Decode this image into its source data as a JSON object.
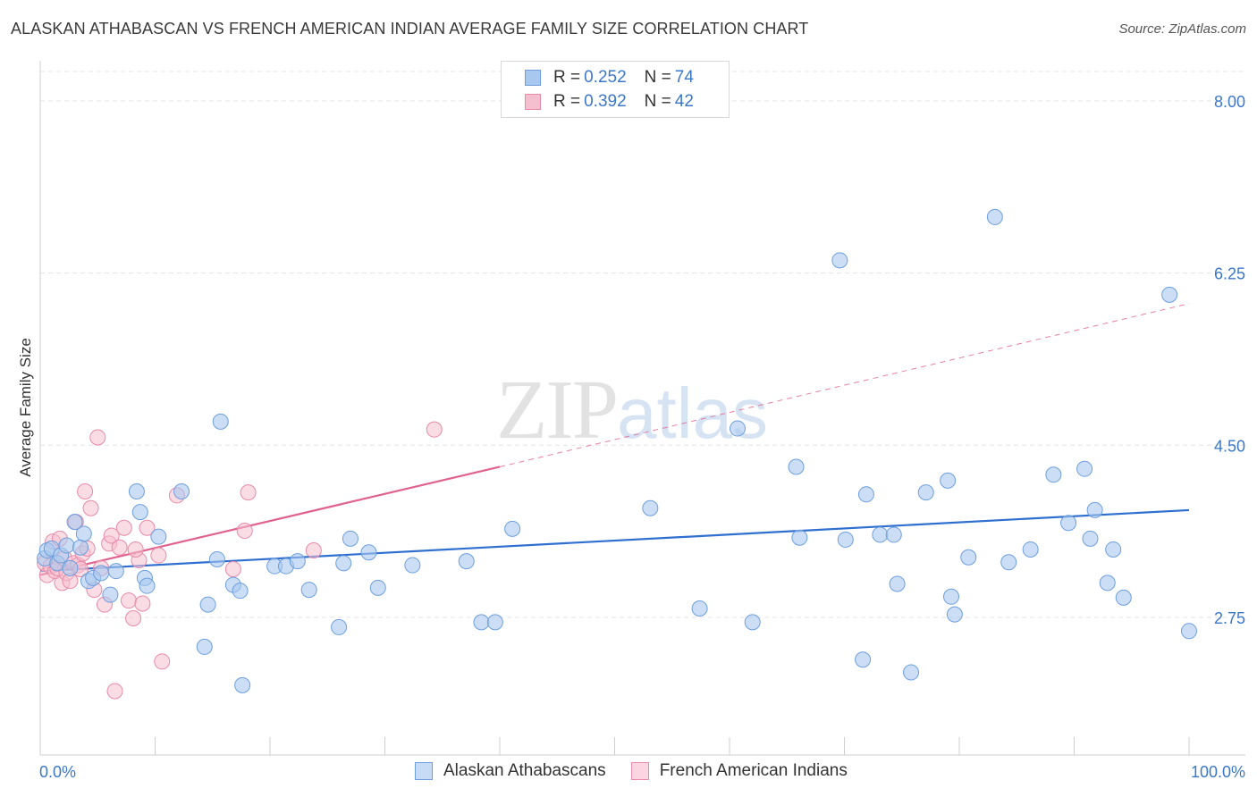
{
  "header": {
    "title": "ALASKAN ATHABASCAN VS FRENCH AMERICAN INDIAN AVERAGE FAMILY SIZE CORRELATION CHART",
    "source": "Source: ZipAtlas.com"
  },
  "legend": {
    "series1": {
      "r_label": "R = ",
      "r_value": "0.252",
      "n_label": "N = ",
      "n_value": "74"
    },
    "series2": {
      "r_label": "R = ",
      "r_value": "0.392",
      "n_label": "N = ",
      "n_value": "42"
    }
  },
  "watermark": {
    "zip": "ZIP",
    "atlas": "atlas"
  },
  "colors": {
    "blue_fill": "#a9c8ef",
    "blue_stroke": "#6e9fdc",
    "blue_line": "#2f6fcf",
    "pink_fill": "#f6bfd0",
    "pink_stroke": "#e88aa8",
    "pink_line": "#e0628f",
    "tick_text": "#3b78c8",
    "grid": "#e4e4e4"
  },
  "chart_data": {
    "type": "scatter",
    "title": "ALASKAN ATHABASCAN VS FRENCH AMERICAN INDIAN AVERAGE FAMILY SIZE CORRELATION CHART",
    "xlabel": "",
    "ylabel": "Average Family Size",
    "xlim": [
      0,
      100
    ],
    "ylim": [
      1.35,
      8.3
    ],
    "x_tick_labels": [
      "0.0%",
      "100.0%"
    ],
    "y_ticks": [
      2.75,
      4.5,
      6.25,
      8.0
    ],
    "y_tick_labels": [
      "2.75",
      "4.50",
      "6.25",
      "8.00"
    ],
    "legend_position": "bottom",
    "series": [
      {
        "name": "Alaskan Athabascans",
        "color": "#a9c8ef",
        "r": 0.252,
        "n": 74,
        "trend": {
          "x0": 0,
          "y0": 3.22,
          "x1": 100,
          "y1": 3.84,
          "dashed_to": 100
        },
        "points": [
          [
            0.4,
            3.35
          ],
          [
            0.6,
            3.43
          ],
          [
            1.0,
            3.45
          ],
          [
            1.5,
            3.3
          ],
          [
            1.8,
            3.38
          ],
          [
            2.3,
            3.48
          ],
          [
            2.6,
            3.25
          ],
          [
            3.0,
            3.72
          ],
          [
            3.5,
            3.46
          ],
          [
            3.8,
            3.6
          ],
          [
            4.2,
            3.12
          ],
          [
            4.6,
            3.15
          ],
          [
            5.3,
            3.2
          ],
          [
            6.1,
            2.98
          ],
          [
            6.6,
            3.22
          ],
          [
            8.4,
            4.03
          ],
          [
            8.7,
            3.82
          ],
          [
            9.1,
            3.15
          ],
          [
            9.3,
            3.07
          ],
          [
            10.3,
            3.57
          ],
          [
            12.3,
            4.03
          ],
          [
            14.3,
            2.45
          ],
          [
            14.6,
            2.88
          ],
          [
            15.4,
            3.34
          ],
          [
            15.7,
            4.74
          ],
          [
            16.8,
            3.08
          ],
          [
            17.4,
            3.02
          ],
          [
            17.6,
            2.06
          ],
          [
            20.4,
            3.27
          ],
          [
            21.4,
            3.27
          ],
          [
            22.4,
            3.32
          ],
          [
            23.4,
            3.03
          ],
          [
            26.0,
            2.65
          ],
          [
            26.4,
            3.3
          ],
          [
            27.0,
            3.55
          ],
          [
            28.6,
            3.41
          ],
          [
            29.4,
            3.05
          ],
          [
            32.4,
            3.28
          ],
          [
            37.1,
            3.32
          ],
          [
            38.4,
            2.7
          ],
          [
            39.6,
            2.7
          ],
          [
            41.1,
            3.65
          ],
          [
            53.1,
            3.86
          ],
          [
            57.4,
            2.84
          ],
          [
            60.7,
            4.67
          ],
          [
            62.0,
            2.7
          ],
          [
            65.8,
            4.28
          ],
          [
            66.1,
            3.56
          ],
          [
            69.6,
            6.38
          ],
          [
            70.1,
            3.54
          ],
          [
            71.6,
            2.32
          ],
          [
            71.9,
            4.0
          ],
          [
            73.1,
            3.59
          ],
          [
            74.3,
            3.59
          ],
          [
            74.6,
            3.09
          ],
          [
            75.8,
            2.19
          ],
          [
            77.1,
            4.02
          ],
          [
            79.0,
            4.14
          ],
          [
            79.3,
            2.96
          ],
          [
            79.6,
            2.78
          ],
          [
            80.8,
            3.36
          ],
          [
            83.1,
            6.82
          ],
          [
            84.3,
            3.31
          ],
          [
            86.2,
            3.44
          ],
          [
            88.2,
            4.2
          ],
          [
            89.5,
            3.71
          ],
          [
            90.9,
            4.26
          ],
          [
            91.4,
            3.55
          ],
          [
            91.8,
            3.84
          ],
          [
            92.9,
            3.1
          ],
          [
            93.4,
            3.44
          ],
          [
            94.3,
            2.95
          ],
          [
            98.3,
            6.03
          ],
          [
            100.0,
            2.61
          ]
        ]
      },
      {
        "name": "French American Indians",
        "color": "#f6bfd0",
        "r": 0.392,
        "n": 42,
        "trend": {
          "x0": 0,
          "y0": 3.18,
          "x1": 40,
          "y1": 4.28,
          "dashed_from": 40,
          "dashed_x1": 100,
          "dashed_y1": 5.94
        },
        "points": [
          [
            0.4,
            3.3
          ],
          [
            0.6,
            3.18
          ],
          [
            0.9,
            3.27
          ],
          [
            1.1,
            3.52
          ],
          [
            1.3,
            3.22
          ],
          [
            1.5,
            3.25
          ],
          [
            1.7,
            3.55
          ],
          [
            1.9,
            3.1
          ],
          [
            2.1,
            3.35
          ],
          [
            2.3,
            3.2
          ],
          [
            2.6,
            3.12
          ],
          [
            2.9,
            3.3
          ],
          [
            3.1,
            3.72
          ],
          [
            3.3,
            3.28
          ],
          [
            3.5,
            3.24
          ],
          [
            3.7,
            3.4
          ],
          [
            3.9,
            4.03
          ],
          [
            4.1,
            3.45
          ],
          [
            4.4,
            3.86
          ],
          [
            4.7,
            3.03
          ],
          [
            5.0,
            4.58
          ],
          [
            5.3,
            3.25
          ],
          [
            5.6,
            2.88
          ],
          [
            6.0,
            3.5
          ],
          [
            6.2,
            3.58
          ],
          [
            6.5,
            2.0
          ],
          [
            6.9,
            3.46
          ],
          [
            7.3,
            3.66
          ],
          [
            7.7,
            2.92
          ],
          [
            8.1,
            2.74
          ],
          [
            8.6,
            3.33
          ],
          [
            8.9,
            2.89
          ],
          [
            9.3,
            3.66
          ],
          [
            10.3,
            3.38
          ],
          [
            10.6,
            2.3
          ],
          [
            11.9,
            3.99
          ],
          [
            16.8,
            3.24
          ],
          [
            17.8,
            3.63
          ],
          [
            18.1,
            4.02
          ],
          [
            23.8,
            3.43
          ],
          [
            34.3,
            4.66
          ],
          [
            8.3,
            3.44
          ]
        ]
      }
    ]
  }
}
